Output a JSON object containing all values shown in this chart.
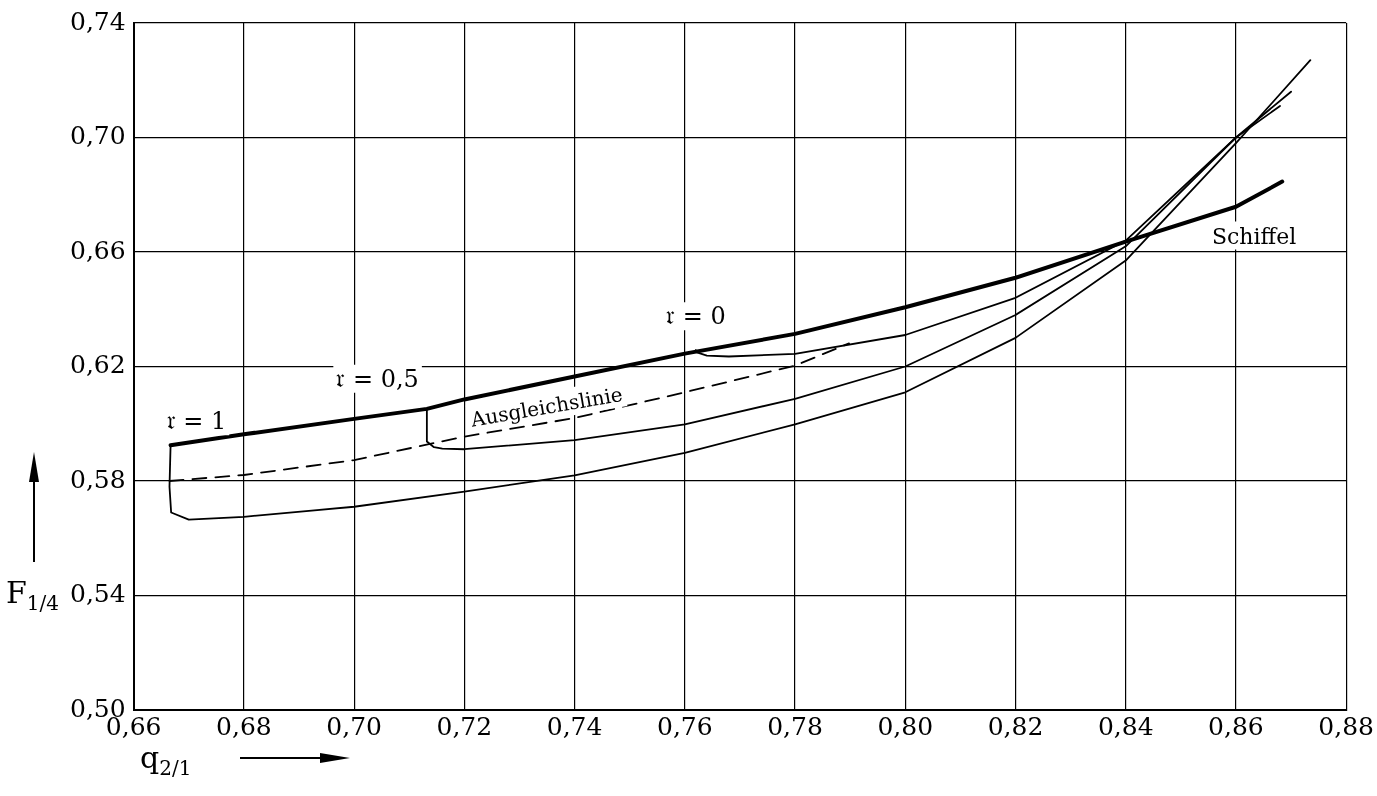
{
  "chart_data": {
    "type": "line",
    "xlabel": "q$_{2/1}$",
    "ylabel": "F$_{1/4}$",
    "xlim": [
      0.66,
      0.88
    ],
    "ylim": [
      0.5,
      0.74
    ],
    "xticks": [
      {
        "value": 0.66,
        "label": "0,66"
      },
      {
        "value": 0.68,
        "label": "0,68"
      },
      {
        "value": 0.7,
        "label": "0,70"
      },
      {
        "value": 0.72,
        "label": "0,72"
      },
      {
        "value": 0.74,
        "label": "0,74"
      },
      {
        "value": 0.76,
        "label": "0,76"
      },
      {
        "value": 0.78,
        "label": "0,78"
      },
      {
        "value": 0.8,
        "label": "0,80"
      },
      {
        "value": 0.82,
        "label": "0,82"
      },
      {
        "value": 0.84,
        "label": "0,84"
      },
      {
        "value": 0.86,
        "label": "0,86"
      },
      {
        "value": 0.88,
        "label": "0,88"
      }
    ],
    "yticks": [
      {
        "value": 0.5,
        "label": "0,50"
      },
      {
        "value": 0.54,
        "label": "0,54"
      },
      {
        "value": 0.58,
        "label": "0,58"
      },
      {
        "value": 0.62,
        "label": "0,62"
      },
      {
        "value": 0.66,
        "label": "0,66"
      },
      {
        "value": 0.7,
        "label": "0,70"
      },
      {
        "value": 0.74,
        "label": "0,74"
      }
    ],
    "grid": true,
    "legend": false,
    "marker": "none",
    "series": [
      {
        "name": "Schiffel",
        "color": "#000000",
        "x": [
          0.6667,
          0.68,
          0.7,
          0.7132,
          0.72,
          0.74,
          0.76,
          0.78,
          0.8,
          0.82,
          0.84,
          0.86,
          0.8684
        ],
        "values": [
          0.5925,
          0.5963,
          0.6017,
          0.6052,
          0.6085,
          0.6165,
          0.6245,
          0.6314,
          0.6407,
          0.651,
          0.6636,
          0.6758,
          0.6846
        ]
      },
      {
        "color": "#000000",
        "x": [
          0.6667,
          0.6665,
          0.6668,
          0.67,
          0.68,
          0.7,
          0.72,
          0.74,
          0.76,
          0.78,
          0.8,
          0.82,
          0.84,
          0.86,
          0.8735
        ],
        "values": [
          0.5925,
          0.578,
          0.569,
          0.5665,
          0.5675,
          0.571,
          0.5763,
          0.582,
          0.5898,
          0.5998,
          0.611,
          0.63,
          0.657,
          0.698,
          0.727
        ]
      },
      {
        "color": "#000000",
        "x": [
          0.7132,
          0.7132,
          0.7145,
          0.716,
          0.72,
          0.74,
          0.76,
          0.78,
          0.8,
          0.82,
          0.84,
          0.86,
          0.87
        ],
        "values": [
          0.6052,
          0.5938,
          0.5918,
          0.5913,
          0.5911,
          0.5943,
          0.5998,
          0.6087,
          0.62,
          0.638,
          0.662,
          0.7,
          0.716
        ]
      },
      {
        "color": "#000000",
        "x": [
          0.762,
          0.7622,
          0.764,
          0.768,
          0.78,
          0.8,
          0.82,
          0.84,
          0.86,
          0.868
        ],
        "values": [
          0.6257,
          0.6249,
          0.6238,
          0.6235,
          0.6244,
          0.631,
          0.644,
          0.664,
          0.7,
          0.711
        ]
      },
      {
        "color": "#000000",
        "line_style": "dashed",
        "x": [
          0.6665,
          0.68,
          0.7,
          0.72,
          0.74,
          0.76,
          0.78,
          0.7898
        ],
        "values": [
          0.58,
          0.5821,
          0.5873,
          0.5955,
          0.602,
          0.611,
          0.6203,
          0.6281
        ]
      }
    ],
    "annotations": [
      {
        "text": "𝔯 = 1",
        "x": 0.6667,
        "y": 0.5925
      },
      {
        "text": "𝔯 = 0,5",
        "x": 0.7132,
        "y": 0.6052
      },
      {
        "text": "𝔯 = 0",
        "x": 0.762,
        "y": 0.6257
      },
      {
        "text": "Ausgleichslinie",
        "x": 0.72,
        "y": 0.5955
      }
    ]
  }
}
